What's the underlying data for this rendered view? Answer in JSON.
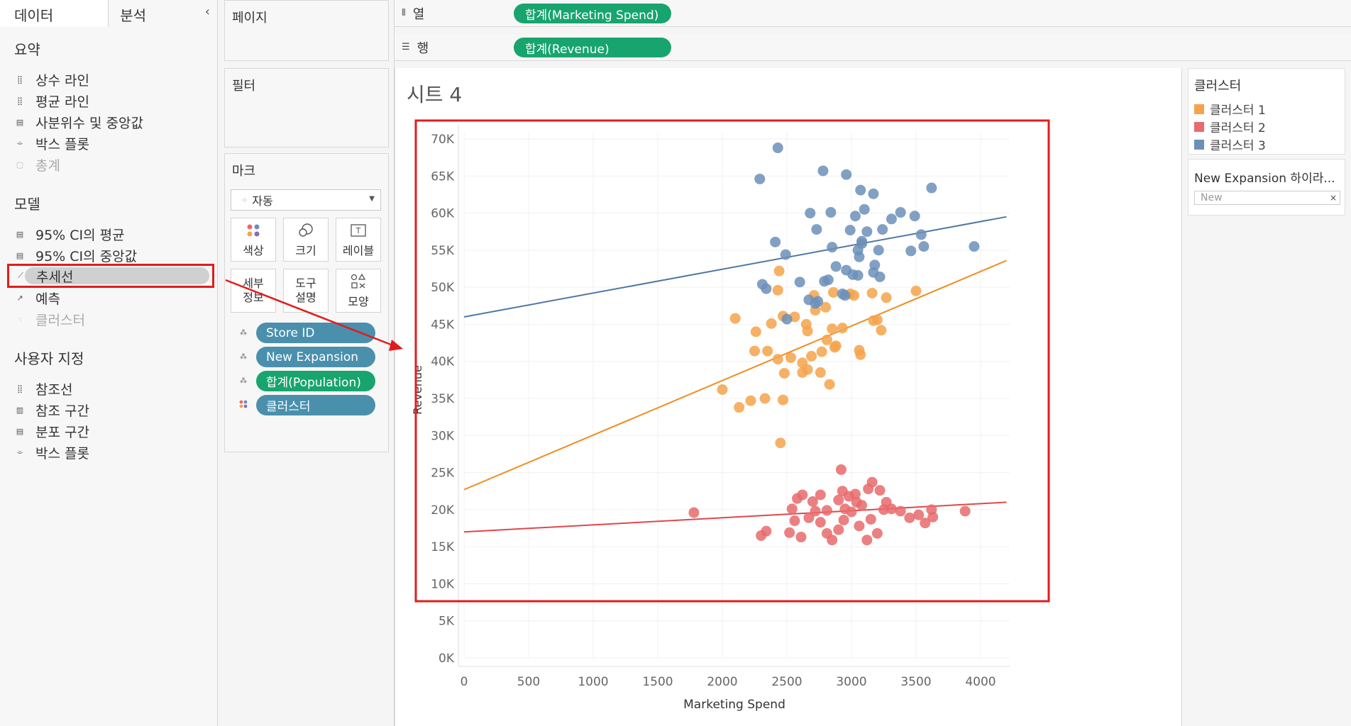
{
  "left": {
    "tabs": [
      "데이터",
      "분석"
    ],
    "collapse_glyph": "‹",
    "sections": {
      "summary": {
        "title": "요약",
        "items": [
          "상수 라인",
          "평균 라인",
          "사분위수 및 중앙값",
          "박스 플롯",
          "총계"
        ]
      },
      "model": {
        "title": "모델",
        "items": [
          "95% CI의 평균",
          "95% CI의 중앙값",
          "추세선",
          "예측",
          "클러스터"
        ]
      },
      "custom": {
        "title": "사용자 지정",
        "items": [
          "참조선",
          "참조 구간",
          "분포 구간",
          "박스 플롯"
        ]
      }
    }
  },
  "mid": {
    "pages_title": "페이지",
    "filters_title": "필터",
    "marks_title": "마크",
    "mark_type": "자동",
    "mark_buttons": [
      "색상",
      "크기",
      "레이블",
      "세부\n정보",
      "도구\n설명",
      "모양"
    ],
    "pills": [
      "Store ID",
      "New Expansion",
      "합계(Population)",
      "클러스터"
    ]
  },
  "shelves": {
    "columns_label": "열",
    "columns_pill": "합계(Marketing Spend)",
    "rows_label": "행",
    "rows_pill": "합계(Revenue)"
  },
  "sheet": {
    "title": "시트 4"
  },
  "legend": {
    "title": "클러스터",
    "items": [
      {
        "label": "클러스터 1",
        "color": "#f5a34b"
      },
      {
        "label": "클러스터 2",
        "color": "#e86a6c"
      },
      {
        "label": "클러스터 3",
        "color": "#6b8fb8"
      }
    ]
  },
  "filter_card": {
    "title": "New Expansion 하이라...",
    "placeholder": "New"
  },
  "chart_data": {
    "type": "scatter",
    "xlabel": "Marketing Spend",
    "ylabel": "Revenue",
    "xlim": [
      0,
      4200
    ],
    "ylim": [
      0,
      70000
    ],
    "xticks": [
      0,
      500,
      1000,
      1500,
      2000,
      2500,
      3000,
      3500,
      4000
    ],
    "yticks": [
      0,
      5000,
      10000,
      15000,
      20000,
      25000,
      30000,
      35000,
      40000,
      45000,
      50000,
      55000,
      60000,
      65000,
      70000
    ],
    "ytick_labels": [
      "0K",
      "5K",
      "10K",
      "15K",
      "20K",
      "25K",
      "30K",
      "35K",
      "40K",
      "45K",
      "50K",
      "55K",
      "60K",
      "65K",
      "70K"
    ],
    "series": [
      {
        "name": "클러스터 1",
        "color": "#f5a34b",
        "trend": [
          [
            0,
            22700
          ],
          [
            4200,
            53600
          ]
        ],
        "points": [
          [
            2440,
            52200
          ],
          [
            2430,
            49600
          ],
          [
            2100,
            45800
          ],
          [
            2260,
            44000
          ],
          [
            2380,
            45100
          ],
          [
            2470,
            46100
          ],
          [
            2560,
            46000
          ],
          [
            2650,
            45000
          ],
          [
            2720,
            46900
          ],
          [
            2800,
            47300
          ],
          [
            2710,
            48900
          ],
          [
            2860,
            49300
          ],
          [
            2990,
            49100
          ],
          [
            3160,
            49200
          ],
          [
            3270,
            48600
          ],
          [
            3500,
            49500
          ],
          [
            2660,
            44100
          ],
          [
            2930,
            44500
          ],
          [
            3200,
            45600
          ],
          [
            3230,
            44200
          ],
          [
            2250,
            41400
          ],
          [
            2350,
            41400
          ],
          [
            2430,
            40300
          ],
          [
            2530,
            40500
          ],
          [
            2620,
            39800
          ],
          [
            2690,
            40700
          ],
          [
            2770,
            41300
          ],
          [
            2880,
            42100
          ],
          [
            2870,
            41900
          ],
          [
            3060,
            41500
          ],
          [
            3070,
            40900
          ],
          [
            2480,
            38400
          ],
          [
            2620,
            38500
          ],
          [
            2660,
            38900
          ],
          [
            2760,
            38500
          ],
          [
            2830,
            36900
          ],
          [
            2000,
            36200
          ],
          [
            2130,
            33800
          ],
          [
            2220,
            34700
          ],
          [
            2330,
            35000
          ],
          [
            2470,
            34800
          ],
          [
            2450,
            29000
          ],
          [
            3170,
            45500
          ],
          [
            3020,
            48900
          ],
          [
            2810,
            42900
          ],
          [
            2850,
            44400
          ]
        ]
      },
      {
        "name": "클러스터 2",
        "color": "#e86a6c",
        "trend": [
          [
            0,
            17000
          ],
          [
            4200,
            21000
          ]
        ],
        "points": [
          [
            1780,
            19600
          ],
          [
            2300,
            16500
          ],
          [
            2340,
            17100
          ],
          [
            2520,
            16900
          ],
          [
            2560,
            18500
          ],
          [
            2610,
            16300
          ],
          [
            2670,
            18900
          ],
          [
            2720,
            19800
          ],
          [
            2760,
            18300
          ],
          [
            2810,
            16800
          ],
          [
            2850,
            15900
          ],
          [
            2900,
            17300
          ],
          [
            2940,
            18600
          ],
          [
            3000,
            19700
          ],
          [
            3060,
            17800
          ],
          [
            3120,
            15900
          ],
          [
            3150,
            18700
          ],
          [
            3200,
            16800
          ],
          [
            3250,
            20000
          ],
          [
            3310,
            20100
          ],
          [
            3380,
            19800
          ],
          [
            3450,
            18900
          ],
          [
            3520,
            19300
          ],
          [
            3570,
            18200
          ],
          [
            3620,
            20000
          ],
          [
            3630,
            19000
          ],
          [
            3880,
            19800
          ],
          [
            2540,
            20100
          ],
          [
            2580,
            21500
          ],
          [
            2620,
            22000
          ],
          [
            2700,
            21100
          ],
          [
            2760,
            22000
          ],
          [
            2810,
            19900
          ],
          [
            2900,
            21300
          ],
          [
            2930,
            22500
          ],
          [
            2980,
            21800
          ],
          [
            3030,
            22100
          ],
          [
            3080,
            20600
          ],
          [
            3130,
            22800
          ],
          [
            3160,
            23700
          ],
          [
            3220,
            22600
          ],
          [
            3270,
            21000
          ],
          [
            2920,
            25400
          ],
          [
            2950,
            20100
          ],
          [
            3040,
            21000
          ]
        ]
      },
      {
        "name": "클러스터 3",
        "color": "#6b8fb8",
        "trend": [
          [
            0,
            46000
          ],
          [
            4200,
            59500
          ]
        ],
        "points": [
          [
            2430,
            68800
          ],
          [
            2290,
            64600
          ],
          [
            2780,
            65700
          ],
          [
            2960,
            65200
          ],
          [
            3070,
            63100
          ],
          [
            3170,
            62600
          ],
          [
            3620,
            63400
          ],
          [
            2680,
            60000
          ],
          [
            2840,
            60100
          ],
          [
            3100,
            60500
          ],
          [
            3030,
            59600
          ],
          [
            2730,
            57800
          ],
          [
            2990,
            57700
          ],
          [
            3120,
            57500
          ],
          [
            3240,
            57800
          ],
          [
            3310,
            59200
          ],
          [
            3380,
            60100
          ],
          [
            3490,
            59600
          ],
          [
            3540,
            57100
          ],
          [
            2410,
            56100
          ],
          [
            2850,
            55400
          ],
          [
            3080,
            56200
          ],
          [
            3080,
            55900
          ],
          [
            3050,
            55000
          ],
          [
            3210,
            55000
          ],
          [
            3460,
            54900
          ],
          [
            3560,
            55500
          ],
          [
            2490,
            54400
          ],
          [
            3060,
            54100
          ],
          [
            2310,
            50400
          ],
          [
            2340,
            49800
          ],
          [
            2600,
            50700
          ],
          [
            2790,
            50800
          ],
          [
            2880,
            52800
          ],
          [
            2960,
            52300
          ],
          [
            3010,
            51700
          ],
          [
            3050,
            51600
          ],
          [
            3170,
            52000
          ],
          [
            3220,
            51400
          ],
          [
            2670,
            48300
          ],
          [
            2740,
            48100
          ],
          [
            2930,
            49100
          ],
          [
            2950,
            48900
          ],
          [
            2500,
            45700
          ],
          [
            2720,
            47800
          ],
          [
            3950,
            55500
          ],
          [
            2820,
            51000
          ],
          [
            3180,
            53000
          ]
        ]
      }
    ]
  }
}
